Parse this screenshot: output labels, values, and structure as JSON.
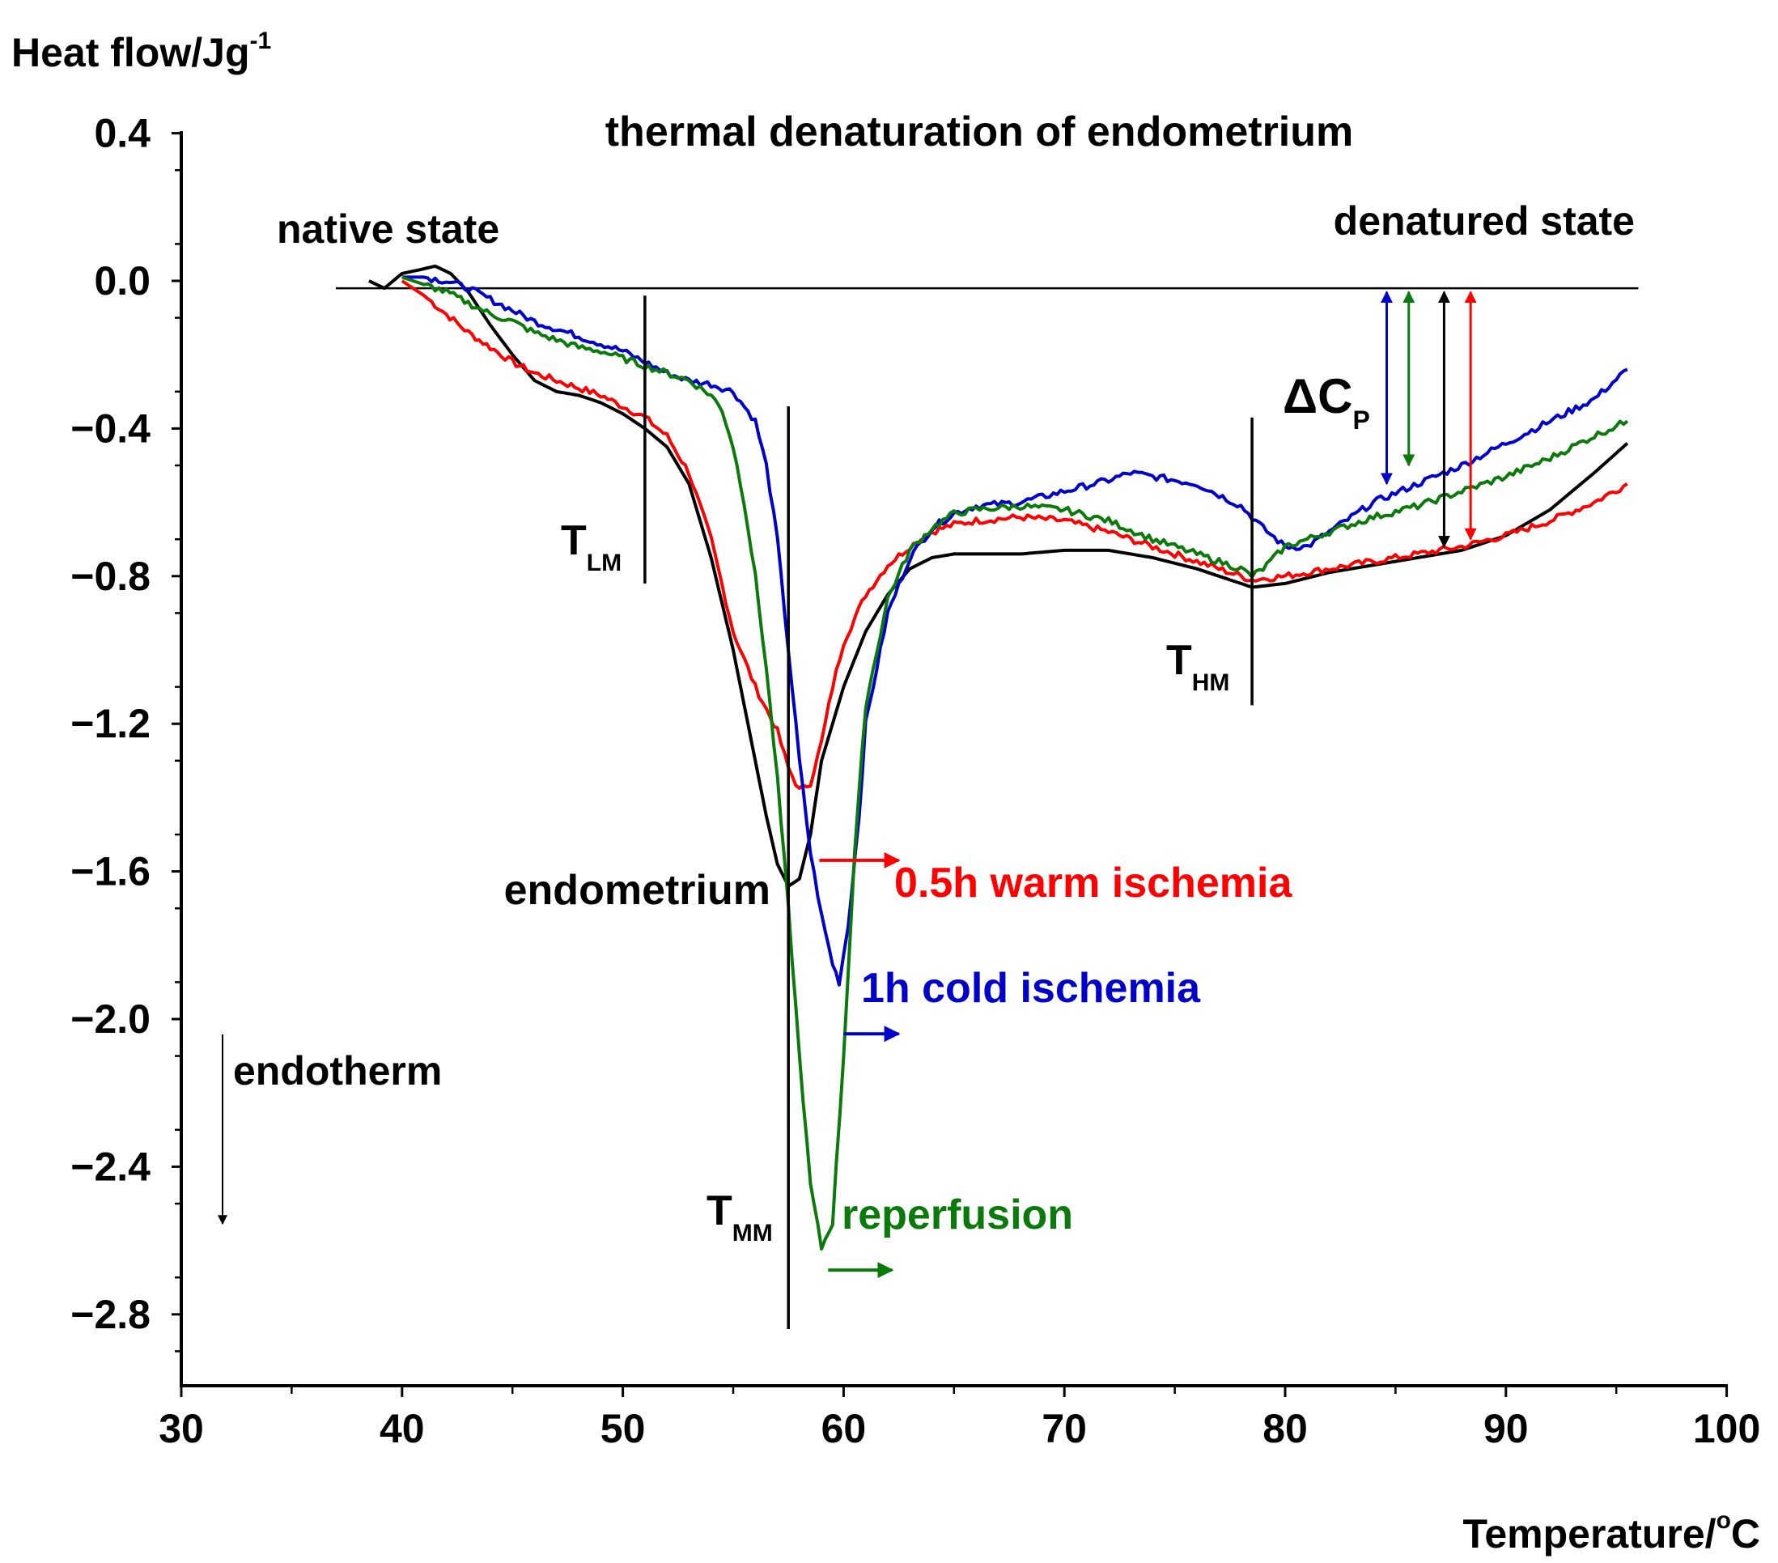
{
  "chart_data": {
    "type": "line",
    "title": "thermal denaturation of endometrium",
    "ylabel": {
      "main": "Heat flow/Jg",
      "sup": "-1"
    },
    "xlabel": {
      "main": "Temperature/",
      "sup": "o",
      "unit": "C"
    },
    "xlim": [
      30,
      100
    ],
    "ylim": [
      -3.0,
      0.4
    ],
    "x_ticks": [
      30,
      40,
      50,
      60,
      70,
      80,
      90,
      100
    ],
    "y_ticks": [
      0.4,
      0.0,
      -0.4,
      -0.8,
      -1.2,
      -1.6,
      -2.0,
      -2.4,
      -2.8
    ],
    "y_tick_labels": [
      "0.4",
      "0.0",
      "−0.4",
      "−0.8",
      "−1.2",
      "−1.6",
      "−2.0",
      "−2.4",
      "−2.8"
    ],
    "annotations": {
      "native_state": "native state",
      "denatured_state": "denatured state",
      "endotherm": "endotherm",
      "delta_cp": {
        "main": "ΔC",
        "sub": "P"
      },
      "t_lm": {
        "main": "T",
        "sub": "LM",
        "x": 51
      },
      "t_mm": {
        "main": "T",
        "sub": "MM",
        "x": 57.5
      },
      "t_hm": {
        "main": "T",
        "sub": "HM",
        "x": 78.5
      }
    },
    "baseline": {
      "x": [
        37,
        96
      ],
      "y": [
        -0.02,
        -0.02
      ]
    },
    "series": [
      {
        "name": "endometrium",
        "color": "#000000",
        "x": [
          38.5,
          39.2,
          40,
          40.8,
          41.5,
          42.2,
          43,
          44,
          45,
          46,
          47,
          48,
          49,
          50,
          51,
          52,
          53,
          54,
          55,
          55.5,
          56,
          56.5,
          57,
          57.5,
          58,
          58.5,
          59,
          60,
          61,
          62,
          63,
          64,
          65,
          66,
          68,
          70,
          72,
          74,
          76,
          78,
          78.5,
          80,
          82,
          84,
          86,
          88,
          90,
          92,
          94,
          95.5
        ],
        "y": [
          0.0,
          -0.02,
          0.02,
          0.03,
          0.04,
          0.02,
          -0.03,
          -0.12,
          -0.2,
          -0.27,
          -0.3,
          -0.31,
          -0.33,
          -0.36,
          -0.4,
          -0.45,
          -0.55,
          -0.75,
          -1.0,
          -1.15,
          -1.3,
          -1.45,
          -1.58,
          -1.64,
          -1.62,
          -1.5,
          -1.3,
          -1.1,
          -0.95,
          -0.85,
          -0.78,
          -0.75,
          -0.74,
          -0.74,
          -0.74,
          -0.73,
          -0.73,
          -0.75,
          -0.78,
          -0.82,
          -0.83,
          -0.82,
          -0.79,
          -0.77,
          -0.75,
          -0.73,
          -0.69,
          -0.62,
          -0.52,
          -0.44
        ]
      },
      {
        "name": "0.5h warm ischemia",
        "color": "#ff0000",
        "x": [
          40,
          41,
          42,
          43,
          44,
          45,
          46,
          47,
          48,
          49,
          50,
          51,
          52,
          53,
          54,
          55,
          56,
          57,
          57.5,
          58,
          58.5,
          59,
          59.5,
          60,
          61,
          62,
          63,
          64,
          65,
          66,
          68,
          70,
          72,
          74,
          76,
          78,
          78.5,
          80,
          82,
          84,
          86,
          88,
          90,
          92,
          94,
          95.5
        ],
        "y": [
          0.0,
          -0.04,
          -0.09,
          -0.14,
          -0.18,
          -0.22,
          -0.25,
          -0.27,
          -0.29,
          -0.31,
          -0.34,
          -0.37,
          -0.42,
          -0.52,
          -0.7,
          -0.95,
          -1.1,
          -1.22,
          -1.32,
          -1.38,
          -1.36,
          -1.25,
          -1.1,
          -0.98,
          -0.85,
          -0.77,
          -0.72,
          -0.68,
          -0.66,
          -0.65,
          -0.64,
          -0.65,
          -0.68,
          -0.72,
          -0.76,
          -0.8,
          -0.81,
          -0.8,
          -0.78,
          -0.76,
          -0.74,
          -0.72,
          -0.69,
          -0.65,
          -0.6,
          -0.55
        ]
      },
      {
        "name": "1h cold ischemia",
        "color": "#0000cc",
        "x": [
          40,
          41,
          42,
          43,
          44,
          45,
          46,
          47,
          48,
          49,
          50,
          51,
          52,
          53,
          54,
          55,
          56,
          56.5,
          57,
          57.5,
          58,
          58.5,
          59,
          59.5,
          59.8,
          60.2,
          60.7,
          61,
          62,
          63,
          64,
          65,
          66,
          68,
          70,
          72,
          73,
          74,
          76,
          77,
          78,
          79,
          80,
          81,
          82,
          84,
          86,
          88,
          90,
          92,
          94,
          95.5
        ],
        "y": [
          0.01,
          0.01,
          0.0,
          -0.02,
          -0.05,
          -0.08,
          -0.11,
          -0.13,
          -0.15,
          -0.17,
          -0.19,
          -0.22,
          -0.25,
          -0.27,
          -0.28,
          -0.3,
          -0.38,
          -0.5,
          -0.7,
          -1.0,
          -1.3,
          -1.55,
          -1.72,
          -1.85,
          -1.9,
          -1.75,
          -1.45,
          -1.2,
          -0.9,
          -0.75,
          -0.67,
          -0.63,
          -0.61,
          -0.6,
          -0.57,
          -0.54,
          -0.52,
          -0.53,
          -0.55,
          -0.58,
          -0.61,
          -0.67,
          -0.72,
          -0.72,
          -0.68,
          -0.6,
          -0.55,
          -0.5,
          -0.44,
          -0.38,
          -0.32,
          -0.24
        ]
      },
      {
        "name": "reperfusion",
        "color": "#0a7a0a",
        "x": [
          40,
          41,
          42,
          43,
          44,
          45,
          46,
          47,
          48,
          49,
          50,
          51,
          52,
          53,
          54,
          54.5,
          55,
          55.5,
          56,
          56.5,
          57,
          57.5,
          58,
          58.5,
          59,
          59.5,
          60,
          60.5,
          61,
          62,
          63,
          64,
          65,
          66,
          68,
          70,
          72,
          74,
          76,
          77,
          78,
          78.5,
          79,
          80,
          82,
          84,
          86,
          88,
          90,
          92,
          94,
          95.5
        ],
        "y": [
          0.01,
          -0.01,
          -0.03,
          -0.06,
          -0.09,
          -0.11,
          -0.14,
          -0.16,
          -0.18,
          -0.19,
          -0.21,
          -0.23,
          -0.25,
          -0.27,
          -0.31,
          -0.35,
          -0.45,
          -0.6,
          -0.8,
          -1.05,
          -1.35,
          -1.7,
          -2.1,
          -2.45,
          -2.62,
          -2.55,
          -2.1,
          -1.55,
          -1.15,
          -0.86,
          -0.73,
          -0.67,
          -0.63,
          -0.62,
          -0.61,
          -0.62,
          -0.65,
          -0.7,
          -0.74,
          -0.76,
          -0.78,
          -0.8,
          -0.78,
          -0.72,
          -0.68,
          -0.64,
          -0.61,
          -0.57,
          -0.53,
          -0.48,
          -0.42,
          -0.38
        ]
      }
    ],
    "labels": {
      "endometrium": "endometrium",
      "warm": "0.5h warm ischemia",
      "cold": "1h cold ischemia",
      "reperfusion": "reperfusion"
    },
    "delta_cp_arrows": [
      {
        "x": 84.6,
        "color": "#0000cc",
        "y_top": -0.03,
        "y_bottom": -0.55
      },
      {
        "x": 85.6,
        "color": "#0a7a0a",
        "y_top": -0.03,
        "y_bottom": -0.5
      },
      {
        "x": 87.2,
        "color": "#000000",
        "y_top": -0.03,
        "y_bottom": -0.72
      },
      {
        "x": 88.4,
        "color": "#ff0000",
        "y_top": -0.03,
        "y_bottom": -0.7
      }
    ],
    "shift_arrows": [
      {
        "color": "#ff0000",
        "x_start": 58.9,
        "x_end": 62.5,
        "y": -1.57
      },
      {
        "color": "#0000cc",
        "x_start": 60,
        "x_end": 62.5,
        "y": -2.04
      },
      {
        "color": "#0a7a0a",
        "x_start": 59.3,
        "x_end": 62.2,
        "y": -2.68
      }
    ]
  }
}
